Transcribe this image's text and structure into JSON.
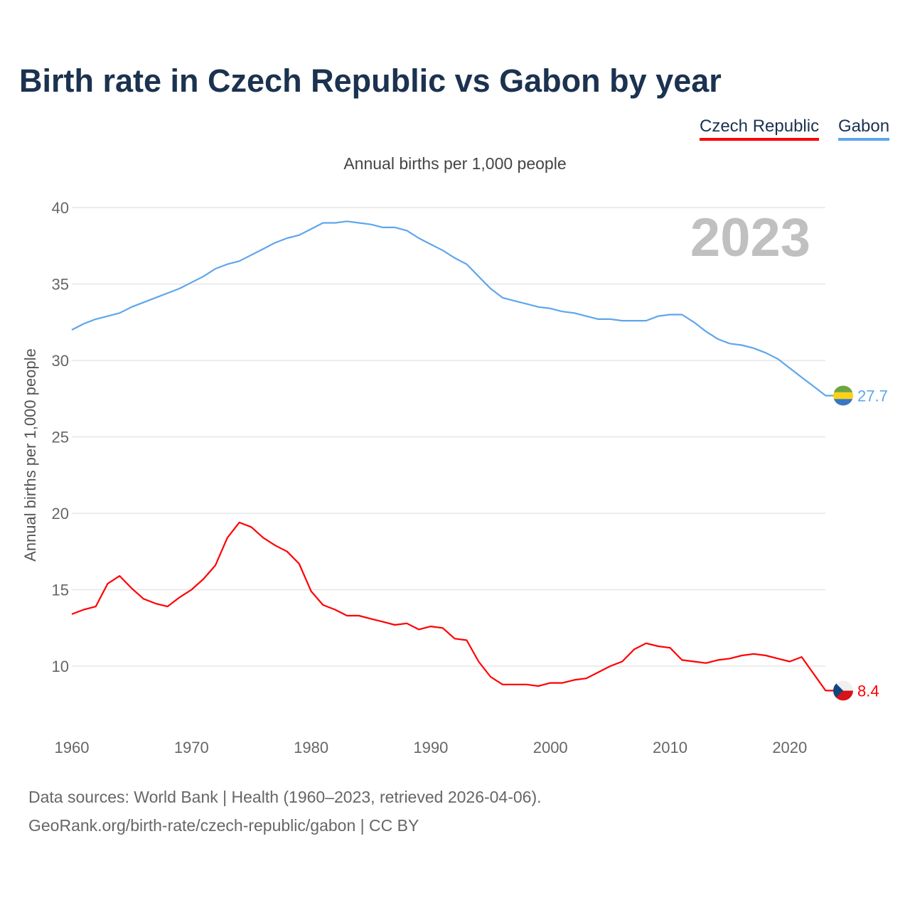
{
  "chart_data": {
    "type": "line",
    "title": "Birth rate in Czech Republic vs Gabon by year",
    "subtitle": "Annual births per 1,000 people",
    "ylabel": "Annual births per 1,000 people",
    "xlabel": "",
    "year_watermark": "2023",
    "xlim": [
      1960,
      2023
    ],
    "ylim": [
      7,
      40
    ],
    "yticks": [
      10,
      15,
      20,
      25,
      30,
      35,
      40
    ],
    "xticks": [
      1960,
      1970,
      1980,
      1990,
      2000,
      2010,
      2020
    ],
    "grid": true,
    "legend_position": "top-right",
    "x": [
      1960,
      1961,
      1962,
      1963,
      1964,
      1965,
      1966,
      1967,
      1968,
      1969,
      1970,
      1971,
      1972,
      1973,
      1974,
      1975,
      1976,
      1977,
      1978,
      1979,
      1980,
      1981,
      1982,
      1983,
      1984,
      1985,
      1986,
      1987,
      1988,
      1989,
      1990,
      1991,
      1992,
      1993,
      1994,
      1995,
      1996,
      1997,
      1998,
      1999,
      2000,
      2001,
      2002,
      2003,
      2004,
      2005,
      2006,
      2007,
      2008,
      2009,
      2010,
      2011,
      2012,
      2013,
      2014,
      2015,
      2016,
      2017,
      2018,
      2019,
      2020,
      2021,
      2022,
      2023
    ],
    "series": [
      {
        "name": "Czech Republic",
        "color": "#ff0000",
        "end_label": "8.4",
        "values": [
          13.4,
          13.7,
          13.9,
          15.4,
          15.9,
          15.1,
          14.4,
          14.1,
          13.9,
          14.5,
          15.0,
          15.7,
          16.6,
          18.4,
          19.4,
          19.1,
          18.4,
          17.9,
          17.5,
          16.7,
          14.9,
          14.0,
          13.7,
          13.3,
          13.3,
          13.1,
          12.9,
          12.7,
          12.8,
          12.4,
          12.6,
          12.5,
          11.8,
          11.7,
          10.3,
          9.3,
          8.8,
          8.8,
          8.8,
          8.7,
          8.9,
          8.9,
          9.1,
          9.2,
          9.6,
          10.0,
          10.3,
          11.1,
          11.5,
          11.3,
          11.2,
          10.4,
          10.3,
          10.2,
          10.4,
          10.5,
          10.7,
          10.8,
          10.7,
          10.5,
          10.3,
          10.6,
          9.5,
          8.4
        ]
      },
      {
        "name": "Gabon",
        "color": "#5ea6ec",
        "end_label": "27.7",
        "values": [
          32.0,
          32.4,
          32.7,
          32.9,
          33.1,
          33.5,
          33.8,
          34.1,
          34.4,
          34.7,
          35.1,
          35.5,
          36.0,
          36.3,
          36.5,
          36.9,
          37.3,
          37.7,
          38.0,
          38.2,
          38.6,
          39.0,
          39.0,
          39.1,
          39.0,
          38.9,
          38.7,
          38.7,
          38.5,
          38.0,
          37.6,
          37.2,
          36.7,
          36.3,
          35.5,
          34.7,
          34.1,
          33.9,
          33.7,
          33.5,
          33.4,
          33.2,
          33.1,
          32.9,
          32.7,
          32.7,
          32.6,
          32.6,
          32.6,
          32.9,
          33.0,
          33.0,
          32.5,
          31.9,
          31.4,
          31.1,
          31.0,
          30.8,
          30.5,
          30.1,
          29.5,
          28.9,
          28.3,
          27.7
        ]
      }
    ]
  },
  "footer": {
    "line1": "Data sources: World Bank | Health (1960–2023, retrieved 2026-04-06).",
    "line2": "GeoRank.org/birth-rate/czech-republic/gabon | CC BY"
  }
}
